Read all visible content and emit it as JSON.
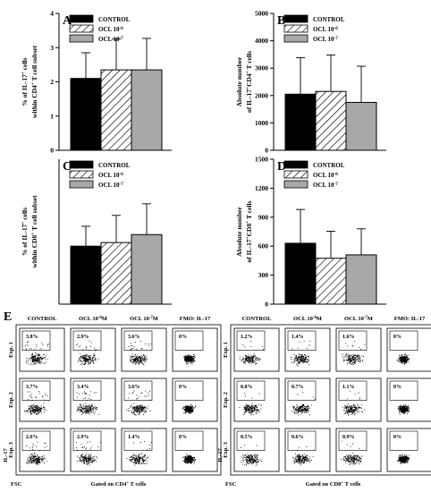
{
  "chart_data": [
    {
      "panel": "A",
      "type": "bar",
      "ylabel_line1": "% of IL-17",
      "ylabel_line1_sup": "+",
      "ylabel_line1_end": " cells",
      "ylabel_line2": "within CD4",
      "ylabel_line2_sup": "+",
      "ylabel_line2_end": " T cell subset",
      "ylim": [
        0,
        4
      ],
      "yticks": [
        "0",
        "1",
        "2",
        "3",
        "4"
      ],
      "categories": [
        "CONTROL",
        "OCL 10-6",
        "OCL 10-7"
      ],
      "values": [
        2.1,
        2.35,
        2.35
      ],
      "errors": [
        0.75,
        0.9,
        0.92
      ]
    },
    {
      "panel": "B",
      "type": "bar",
      "ylabel_line1": "Absolute number",
      "ylabel_line2": "of IL-17",
      "ylabel_line2_sup": "+",
      "ylabel_line2_end": "CD4",
      "ylabel_line2_sup2": "+",
      "ylabel_line2_end2": " T cells",
      "ylim": [
        0,
        5000
      ],
      "yticks": [
        "0",
        "1000",
        "2000",
        "3000",
        "4000",
        "5000"
      ],
      "categories": [
        "CONTROL",
        "OCL 10-6",
        "OCL 10-7"
      ],
      "values": [
        2050,
        2150,
        1750
      ],
      "errors": [
        1330,
        1330,
        1320
      ]
    },
    {
      "panel": "C",
      "type": "bar",
      "ylabel_line1": "% of IL-17",
      "ylabel_line1_sup": "+",
      "ylabel_line1_end": " cells",
      "ylabel_line2": "within CD8",
      "ylabel_line2_sup": "+",
      "ylabel_line2_end": " T cell subset",
      "ylim": [
        0,
        4
      ],
      "yticks": [],
      "categories": [
        "CONTROL",
        "OCL 10-6",
        "OCL 10-7"
      ],
      "values": [
        1.6,
        1.7,
        1.92
      ],
      "errors": [
        0.55,
        0.75,
        0.85
      ]
    },
    {
      "panel": "D",
      "type": "bar",
      "ylabel_line1": "Absolute number",
      "ylabel_line2": "of IL-17",
      "ylabel_line2_sup": "+",
      "ylabel_line2_end": "CD8",
      "ylabel_line2_sup2": "+",
      "ylabel_line2_end2": " T cells",
      "ylim": [
        0,
        1500
      ],
      "yticks": [
        "0",
        "300",
        "600",
        "900",
        "1200",
        "1500"
      ],
      "categories": [
        "CONTROL",
        "OCL 10-6",
        "OCL 10-7"
      ],
      "values": [
        630,
        475,
        510
      ],
      "errors": [
        350,
        280,
        270
      ]
    }
  ],
  "legend": [
    {
      "label": "CONTROL",
      "sup": "",
      "pattern": "solid"
    },
    {
      "label": "OCL 10",
      "sup": "-6",
      "pattern": "hatch"
    },
    {
      "label": "OCL 10",
      "sup": "-7",
      "pattern": "gray"
    }
  ],
  "colors": {
    "control": "#000000",
    "ocl7": "#a8a8a8",
    "hatch": "#000000"
  },
  "flow": {
    "panel": "E",
    "column_headers": [
      {
        "main": "CONTROL",
        "sup": "",
        "end": ""
      },
      {
        "main": "OCL 10",
        "sup": "-6",
        "end": "M"
      },
      {
        "main": "OCL 10",
        "sup": "-7",
        "end": "M"
      },
      {
        "main": "FMO: IL-17",
        "sup": "",
        "end": ""
      }
    ],
    "rows": [
      "Exp. 1",
      "Exp. 2",
      "Exp. 3"
    ],
    "left_percentages": [
      [
        "3.8%",
        "2.9%",
        "3.6%",
        "0%"
      ],
      [
        "3.7%",
        "3.4%",
        "3.6%",
        "0%"
      ],
      [
        "2.6%",
        "2.9%",
        "1.4%",
        "0%"
      ]
    ],
    "right_percentages": [
      [
        "1.2%",
        "1.4%",
        "1.6%",
        "0%"
      ],
      [
        "0.8%",
        "0.7%",
        "1.1%",
        "0%"
      ],
      [
        "0.5%",
        "0.6%",
        "0.9%",
        "0%"
      ]
    ],
    "left_gate": {
      "main": "Gated on CD4",
      "sup": "+",
      "end": " T cells"
    },
    "right_gate": {
      "main": "Gated on CD8",
      "sup": "+",
      "end": " T cells"
    },
    "y_axis_label": "IL-17",
    "x_axis_label": "FSC"
  }
}
